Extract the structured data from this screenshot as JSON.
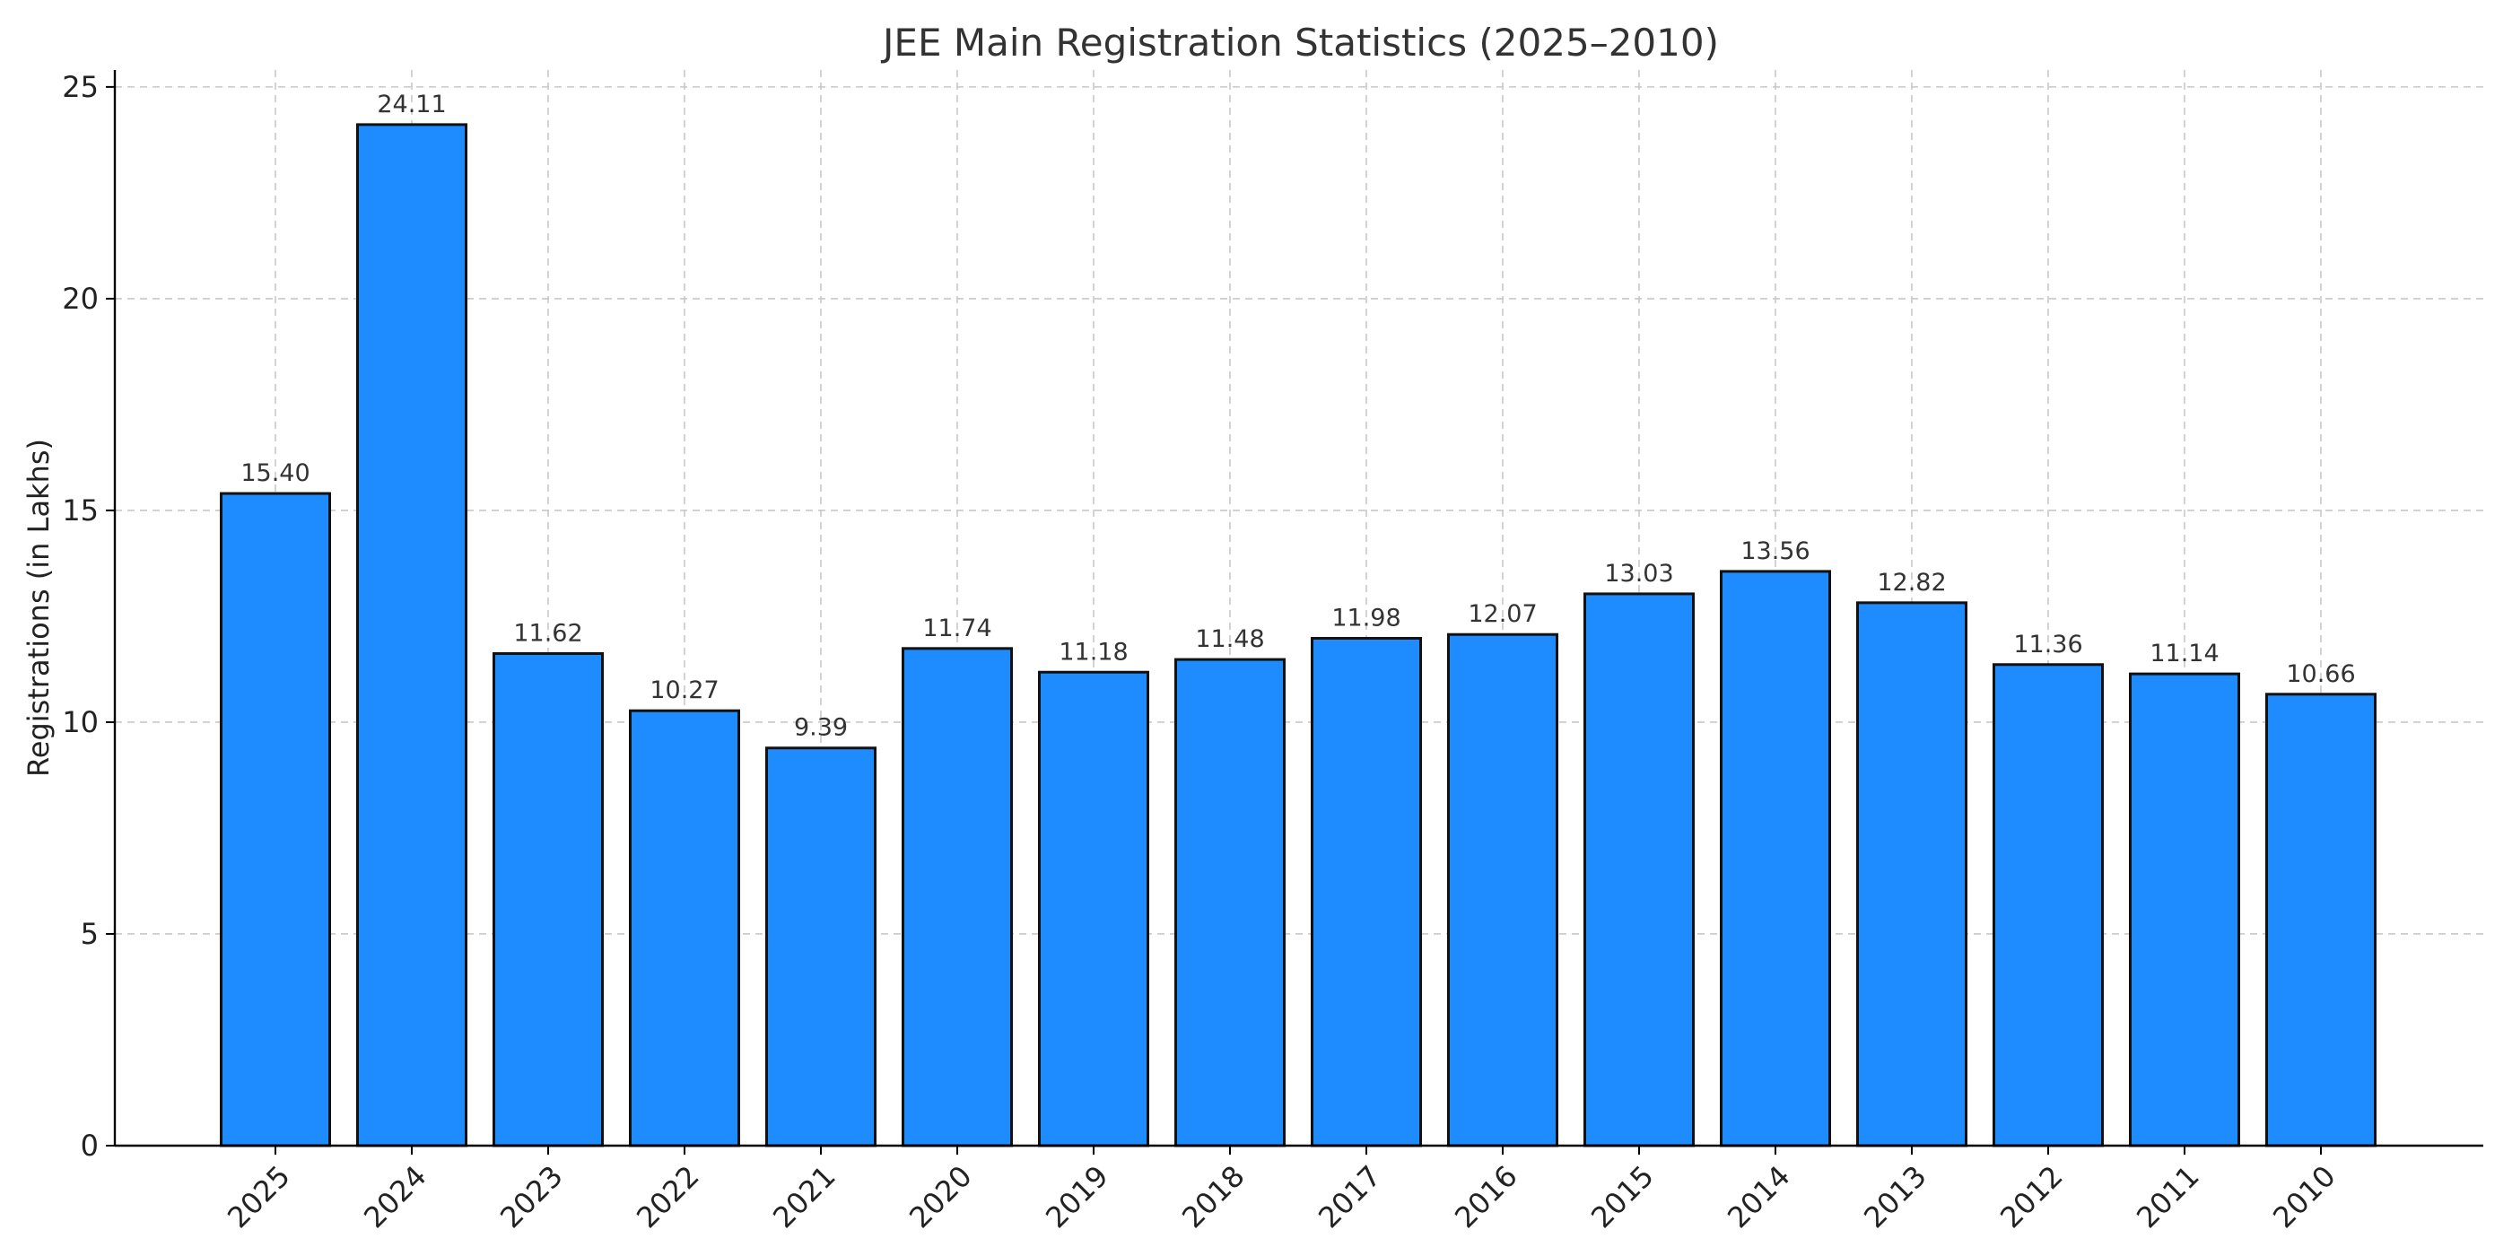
{
  "chart_data": {
    "type": "bar",
    "title": "JEE Main Registration Statistics (2025–2010)",
    "xlabel": "",
    "ylabel": "Registrations (in Lakhs)",
    "categories": [
      "2025",
      "2024",
      "2023",
      "2022",
      "2021",
      "2020",
      "2019",
      "2018",
      "2017",
      "2016",
      "2015",
      "2014",
      "2013",
      "2012",
      "2011",
      "2010"
    ],
    "values": [
      15.4,
      24.11,
      11.62,
      10.27,
      9.39,
      11.74,
      11.18,
      11.48,
      11.98,
      12.07,
      13.03,
      13.56,
      12.82,
      11.36,
      11.14,
      10.66
    ],
    "value_labels": [
      "15.40",
      "24.11",
      "11.62",
      "10.27",
      "9.39",
      "11.74",
      "11.18",
      "11.48",
      "11.98",
      "12.07",
      "13.03",
      "13.56",
      "12.82",
      "11.36",
      "11.14",
      "10.66"
    ],
    "yticks": [
      0,
      5,
      10,
      15,
      20,
      25
    ],
    "ylim": [
      0,
      25.4
    ],
    "grid": true,
    "legend": "none",
    "bar_color": "#1E8CFF",
    "x_tick_rotation": "45deg"
  }
}
